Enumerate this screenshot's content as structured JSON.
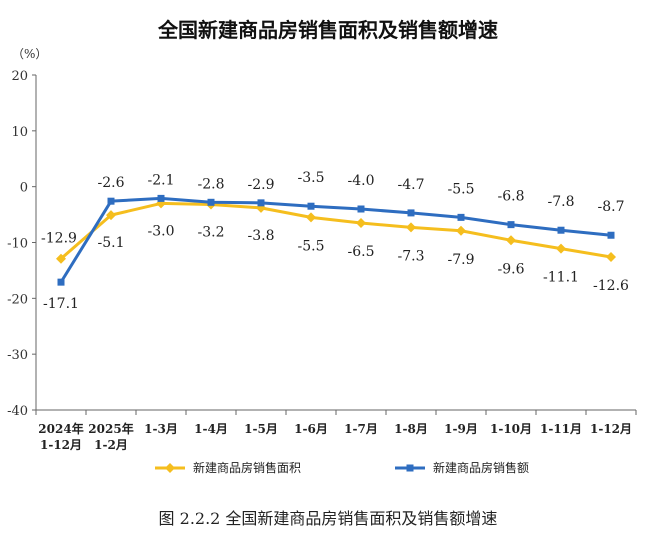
{
  "chart_data": {
    "type": "line",
    "title": "全国新建商品房销售面积及销售额增速",
    "unit_label": "（%）",
    "caption": "图 2.2.2  全国新建商品房销售面积及销售额增速",
    "categories": [
      [
        "2024年",
        "1-12月"
      ],
      [
        "2025年",
        "1-2月"
      ],
      [
        "1-3月"
      ],
      [
        "1-4月"
      ],
      [
        "1-5月"
      ],
      [
        "1-6月"
      ],
      [
        "1-7月"
      ],
      [
        "1-8月"
      ],
      [
        "1-9月"
      ],
      [
        "1-10月"
      ],
      [
        "1-11月"
      ],
      [
        "1-12月"
      ]
    ],
    "ylim": [
      -40,
      20
    ],
    "yticks": [
      20,
      10,
      0,
      -10,
      -20,
      -30,
      -40
    ],
    "legend_position": "bottom",
    "series": [
      {
        "name": "新建商品房销售面积",
        "color": "#F5BE1E",
        "marker": "diamond",
        "values": [
          -12.9,
          -5.1,
          -3.0,
          -3.2,
          -3.8,
          -5.5,
          -6.5,
          -7.3,
          -7.9,
          -9.6,
          -11.1,
          -12.6
        ],
        "labels": [
          "-12.9",
          "-5.1",
          "-3.0",
          "-3.2",
          "-3.8",
          "-5.5",
          "-6.5",
          "-7.3",
          "-7.9",
          "-9.6",
          "-11.1",
          "-12.6"
        ]
      },
      {
        "name": "新建商品房销售额",
        "color": "#2E6DC0",
        "marker": "square",
        "values": [
          -17.1,
          -2.6,
          -2.1,
          -2.8,
          -2.9,
          -3.5,
          -4.0,
          -4.7,
          -5.5,
          -6.8,
          -7.8,
          -8.7
        ],
        "labels": [
          "-17.1",
          "-2.6",
          "-2.1",
          "-2.8",
          "-2.9",
          "-3.5",
          "-4.0",
          "-4.7",
          "-5.5",
          "-6.8",
          "-7.8",
          "-8.7"
        ]
      }
    ]
  }
}
